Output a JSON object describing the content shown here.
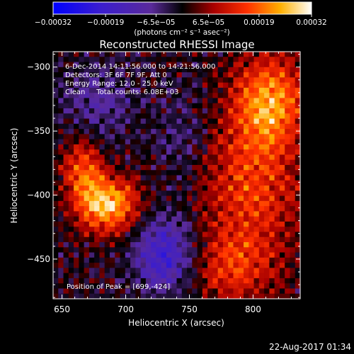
{
  "chart_data": {
    "type": "heatmap",
    "title": "Reconstructed RHESSI Image",
    "xlabel": "Heliocentric X (arcsec)",
    "ylabel": "Heliocentric Y (arcsec)",
    "xlim": [
      643,
      837
    ],
    "ylim": [
      -481,
      -288
    ],
    "xticks": [
      650,
      700,
      750,
      800
    ],
    "yticks": [
      -300,
      -350,
      -400,
      -450
    ],
    "xtick_labels": [
      "650",
      "700",
      "750",
      "800"
    ],
    "ytick_labels": [
      "−300",
      "−350",
      "−400",
      "−450"
    ],
    "colorbar": {
      "range": [
        -0.00032,
        0.00032
      ],
      "ticks": [
        -0.00032,
        -0.00019,
        -6.5e-05,
        6.5e-05,
        0.00019,
        0.00032
      ],
      "tick_labels": [
        "−0.00032",
        "−0.00019",
        "−6.5e−05",
        "6.5e−05",
        "0.00019",
        "0.00032"
      ],
      "unit_label": "(photons cm⁻² s⁻¹ asec⁻²)"
    },
    "annotations": [
      "6-Dec-2014 14:11:56.000 to 14:21:56.000",
      "Detectors: 3F 6F 7F 9F, Att 0",
      "Energy Range: 12.0 - 25.0 keV",
      "Clean     Total counts: 6.08E+03"
    ],
    "peak_annotation": "Position of Peak = [699,-424]",
    "peak": {
      "x": 699,
      "y": -424
    },
    "grid": false,
    "colormap": "heat (blue-purple-black-red-yellow-white)"
  },
  "footer": {
    "timestamp": "22-Aug-2017 01:34"
  }
}
